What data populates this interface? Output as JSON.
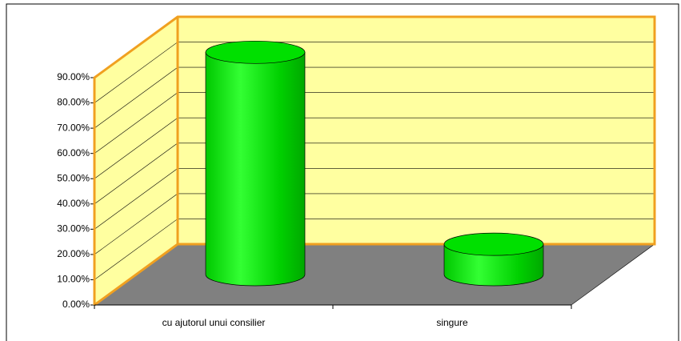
{
  "chart_data": {
    "type": "cylinder3d",
    "categories": [
      "cu ajutorul unui consilier",
      "singure"
    ],
    "values": [
      88,
      12
    ],
    "color": "#00e000",
    "ylim": [
      0,
      90
    ],
    "yticks": [
      {
        "value": 0,
        "label": "0.00%"
      },
      {
        "value": 10,
        "label": "10.00%"
      },
      {
        "value": 20,
        "label": "20.00%"
      },
      {
        "value": 30,
        "label": "30.00%"
      },
      {
        "value": 40,
        "label": "40.00%"
      },
      {
        "value": 50,
        "label": "50.00%"
      },
      {
        "value": 60,
        "label": "60.00%"
      },
      {
        "value": 70,
        "label": "70.00%"
      },
      {
        "value": 80,
        "label": "80.00%"
      },
      {
        "value": 90,
        "label": "90.00%"
      }
    ],
    "grid": true
  }
}
